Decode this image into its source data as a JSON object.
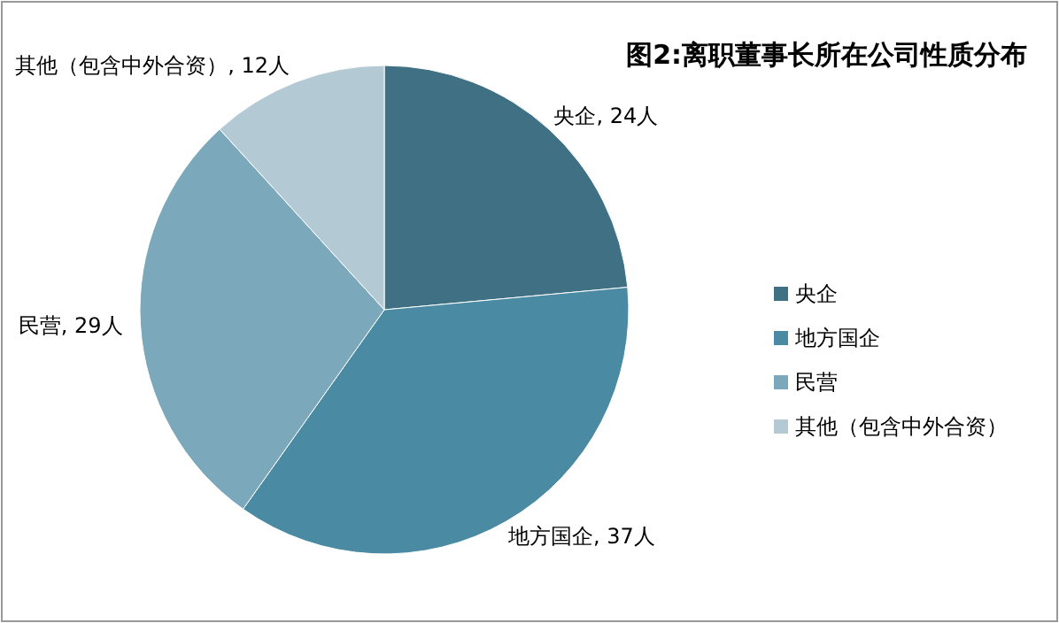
{
  "chart_data": {
    "type": "pie",
    "title": "图2:离职董事长所在公司性质分布",
    "categories": [
      "央企",
      "地方国企",
      "民营",
      "其他（包含中外合资）"
    ],
    "values": [
      24,
      37,
      29,
      12
    ],
    "colors": [
      "#3f7083",
      "#4a8aa3",
      "#7ba8bb",
      "#b3cad4"
    ],
    "value_labels": [
      "央企, 24人",
      "地方国企, 37人",
      "民营, 29人",
      "其他（包含中外合资）, 12人"
    ],
    "legend": "right"
  }
}
